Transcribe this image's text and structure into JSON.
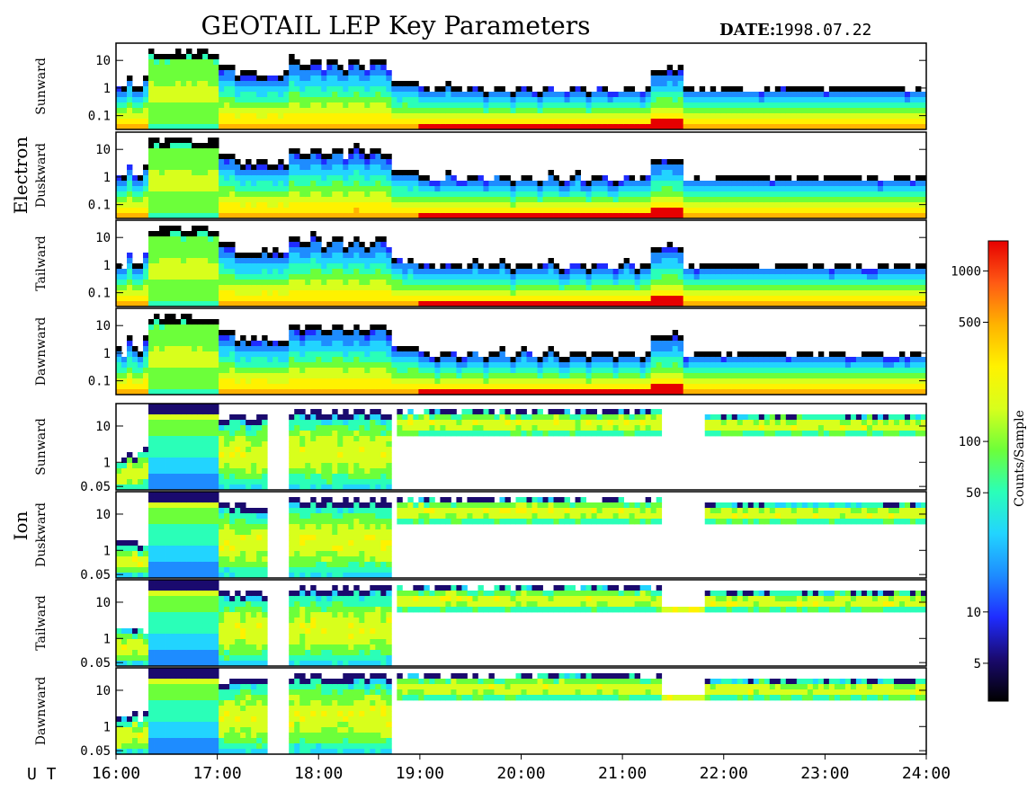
{
  "title": "GEOTAIL LEP Key Parameters",
  "date_label": "DATE:",
  "date_value": "1998.07.22",
  "ut_label": "U T",
  "colorbar": {
    "label": "Counts/Sample",
    "scale": "log",
    "range": [
      3,
      1500
    ],
    "ticks": [
      {
        "value": 1000,
        "label": "1000"
      },
      {
        "value": 500,
        "label": "500"
      },
      {
        "value": 100,
        "label": "100"
      },
      {
        "value": 50,
        "label": "50"
      },
      {
        "value": 10,
        "label": "10"
      },
      {
        "value": 5,
        "label": "5"
      }
    ],
    "colors": [
      "#000000",
      "#1a0a6e",
      "#1f2cff",
      "#1e8cff",
      "#22d4ff",
      "#2affb8",
      "#6cff3a",
      "#d8ff1c",
      "#fff200",
      "#ffb300",
      "#ff5a14",
      "#e60000"
    ]
  },
  "chart_data": {
    "type": "heatmap",
    "x_axis": {
      "label": "UT",
      "range": [
        "16:00",
        "24:00"
      ],
      "ticks": [
        "16:00",
        "17:00",
        "18:00",
        "19:00",
        "20:00",
        "21:00",
        "22:00",
        "23:00",
        "24:00"
      ]
    },
    "groups": [
      {
        "name": "Electron",
        "y_range": [
          0.05,
          20
        ],
        "y_ticks": [
          "10",
          "1",
          "0.1"
        ],
        "panels": [
          {
            "name": "Sunward"
          },
          {
            "name": "Duskward"
          },
          {
            "name": "Tailward"
          },
          {
            "name": "Dawnward"
          }
        ]
      },
      {
        "name": "Ion",
        "y_range": [
          0.05,
          30
        ],
        "y_ticks": [
          "10",
          "1",
          "0.05"
        ],
        "panels": [
          {
            "name": "Sunward"
          },
          {
            "name": "Duskward"
          },
          {
            "name": "Tailward"
          },
          {
            "name": "Dawnward"
          }
        ]
      }
    ]
  }
}
